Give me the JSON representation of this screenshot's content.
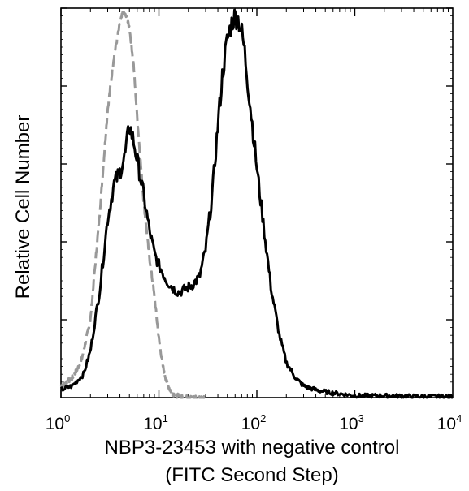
{
  "chart_data": {
    "type": "line",
    "title": "",
    "xlabel": "NBP3-23453 with negative control",
    "xlabel_line2": "(FITC Second Step)",
    "ylabel": "Relative Cell Number",
    "x_scale": "log",
    "xlim": [
      1,
      10000
    ],
    "ylim": [
      0,
      100
    ],
    "x_ticks": [
      {
        "base": "10",
        "exp": "0",
        "value": 1
      },
      {
        "base": "10",
        "exp": "1",
        "value": 10
      },
      {
        "base": "10",
        "exp": "2",
        "value": 100
      },
      {
        "base": "10",
        "exp": "3",
        "value": 1000
      },
      {
        "base": "10",
        "exp": "4",
        "value": 10000
      }
    ],
    "y_major_ticks": [
      20,
      40,
      60,
      80,
      100
    ],
    "grid": false,
    "series": [
      {
        "style": "solid",
        "color": "#000000",
        "x": [
          1,
          1.3,
          1.7,
          2.0,
          2.5,
          3.0,
          3.5,
          4.0,
          4.5,
          5.0,
          5.5,
          6.0,
          7.0,
          8.0,
          9.0,
          10,
          12,
          14,
          16,
          19,
          22,
          26,
          30,
          35,
          40,
          45,
          50,
          55,
          60,
          65,
          70,
          75,
          80,
          90,
          100,
          120,
          140,
          170,
          200,
          250,
          300,
          400,
          500,
          700,
          1000,
          2000,
          5000,
          10000
        ],
        "y": [
          2,
          3,
          6,
          12,
          28,
          46,
          55,
          58,
          62,
          70,
          66,
          61,
          52,
          43,
          37,
          34,
          30,
          28,
          27,
          28,
          29,
          31,
          38,
          52,
          70,
          84,
          92,
          96,
          98,
          97,
          94,
          89,
          82,
          70,
          59,
          42,
          28,
          16,
          9,
          5,
          3,
          2,
          1.5,
          1,
          0.5,
          0.5,
          0.3,
          0.3
        ]
      },
      {
        "style": "dashed",
        "color": "#999999",
        "x": [
          1,
          1.3,
          1.6,
          2.0,
          2.5,
          3.0,
          3.5,
          4.0,
          4.3,
          4.6,
          5.0,
          5.5,
          6.0,
          7.0,
          8.0,
          9.0,
          10,
          11,
          12,
          13,
          14,
          15,
          17,
          20,
          30
        ],
        "y": [
          3,
          5,
          9,
          20,
          48,
          74,
          88,
          96,
          99,
          98,
          95,
          86,
          72,
          50,
          36,
          26,
          15,
          8,
          4,
          2,
          1,
          0.5,
          0.2,
          0,
          0
        ]
      }
    ]
  }
}
